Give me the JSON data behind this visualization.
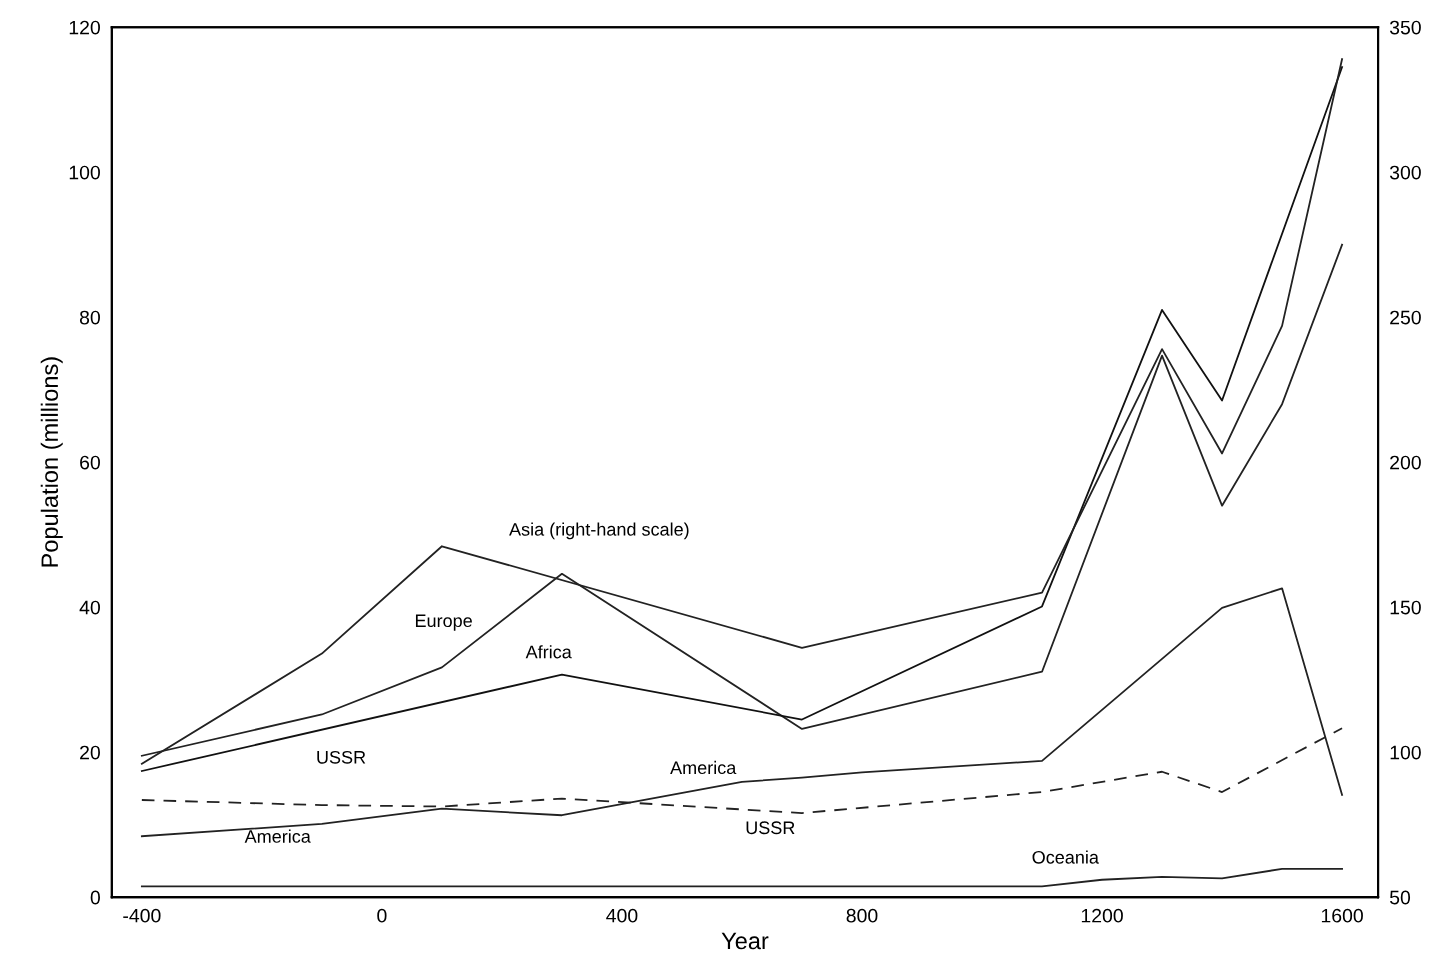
{
  "chart_data": {
    "type": "line",
    "xlabel": "Year",
    "ylabel": "Population (millions)",
    "xlim": [
      -450,
      1660
    ],
    "ylim": [
      0,
      120
    ],
    "y2lim": [
      50,
      350
    ],
    "xticks": [
      -400,
      0,
      400,
      800,
      1200,
      1600
    ],
    "yticks": [
      0,
      20,
      40,
      60,
      80,
      100,
      120
    ],
    "y2ticks": [
      50,
      100,
      150,
      200,
      250,
      300,
      350
    ],
    "grid": false,
    "marker": "none",
    "series": [
      {
        "color": "#222222",
        "axis": "y2",
        "line_style": "solid",
        "x": [
          -400,
          -100,
          100,
          700,
          1100,
          1300,
          1400,
          1500,
          1600
        ],
        "values": [
          96,
          134,
          171,
          136,
          155,
          239,
          203,
          247,
          339
        ]
      },
      {
        "color": "#222222",
        "line_style": "solid",
        "x": [
          -400,
          -100,
          100,
          300,
          700,
          1100,
          1300,
          1400,
          1500,
          1600
        ],
        "values": [
          19.5,
          25.2,
          31.7,
          44.6,
          23.2,
          31.1,
          74.7,
          54,
          68,
          90
        ]
      },
      {
        "color": "#111111",
        "line_style": "solid",
        "x": [
          -400,
          300,
          700,
          1100,
          1300,
          1400,
          1600
        ],
        "values": [
          17.4,
          30.7,
          24.5,
          40.1,
          81,
          68.5,
          114.5
        ]
      },
      {
        "color": "#222222",
        "line_style": "solid",
        "x": [
          -400,
          -100,
          100,
          300,
          600,
          700,
          800,
          1100,
          1400,
          1500,
          1600
        ],
        "values": [
          8.4,
          10.1,
          12.2,
          11.3,
          15.9,
          16.5,
          17.2,
          18.8,
          39.9,
          42.6,
          14.1
        ]
      },
      {
        "color": "#222222",
        "line_style": "dashed",
        "x": [
          -400,
          -100,
          100,
          300,
          700,
          1100,
          1300,
          1400,
          1600
        ],
        "values": [
          13.4,
          12.7,
          12.5,
          13.6,
          11.6,
          14.5,
          17.3,
          14.5,
          23.3
        ]
      },
      {
        "color": "#222222",
        "line_style": "solid",
        "x": [
          -400,
          1100,
          1200,
          1300,
          1400,
          1500,
          1600
        ],
        "values": [
          1.5,
          1.5,
          2.4,
          2.8,
          2.6,
          3.9,
          3.9
        ]
      }
    ],
    "annotations": [
      "Asia (right-hand scale)",
      "Europe",
      "Africa",
      "USSR",
      "America",
      "America",
      "USSR",
      "Oceania"
    ]
  }
}
